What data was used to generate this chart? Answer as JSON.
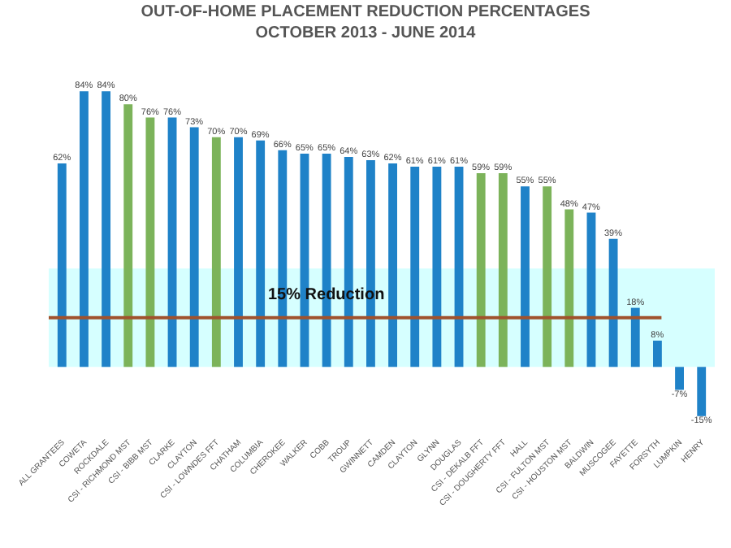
{
  "chart_data": {
    "type": "bar",
    "title": "OUT-OF-HOME PLACEMENT REDUCTION PERCENTAGES",
    "subtitle": "OCTOBER 2013 - JUNE 2014",
    "categories": [
      "ALL GRANTEES",
      "COWETA",
      "ROCKDALE",
      "CSI - RICHMOND MST",
      "CSI - BIBB MST",
      "CLARKE",
      "CLAYTON",
      "CSI - LOWNDES FFT",
      "CHATHAM",
      "COLUMBIA",
      "CHEROKEE",
      "WALKER",
      "COBB",
      "TROUP",
      "GWINNETT",
      "CAMDEN",
      "CLAYTON",
      "GLYNN",
      "DOUGLAS",
      "CSI - DEKALB FFT",
      "CSI - DOUGHERTY FFT",
      "HALL",
      "CSI - FULTON MST",
      "CSI - HOUSTON MST",
      "BALDWIN",
      "MUSCOGEE",
      "FAYETTE",
      "FORSYTH",
      "LUMPKIN",
      "HENRY"
    ],
    "values": [
      62,
      84,
      84,
      80,
      76,
      76,
      73,
      70,
      70,
      69,
      66,
      65,
      65,
      64,
      63,
      62,
      61,
      61,
      61,
      59,
      59,
      55,
      55,
      48,
      47,
      39,
      18,
      8,
      -7,
      -15
    ],
    "colors": [
      "#1f82c8",
      "#1f82c8",
      "#1f82c8",
      "#7cb35a",
      "#7cb35a",
      "#1f82c8",
      "#1f82c8",
      "#7cb35a",
      "#1f82c8",
      "#1f82c8",
      "#1f82c8",
      "#1f82c8",
      "#1f82c8",
      "#1f82c8",
      "#1f82c8",
      "#1f82c8",
      "#1f82c8",
      "#1f82c8",
      "#1f82c8",
      "#7cb35a",
      "#7cb35a",
      "#1f82c8",
      "#7cb35a",
      "#7cb35a",
      "#1f82c8",
      "#1f82c8",
      "#1f82c8",
      "#1f82c8",
      "#1f82c8",
      "#1f82c8"
    ],
    "value_labels": [
      "62%",
      "84%",
      "84%",
      "80%",
      "76%",
      "76%",
      "73%",
      "70%",
      "70%",
      "69%",
      "66%",
      "65%",
      "65%",
      "64%",
      "63%",
      "62%",
      "61%",
      "61%",
      "61%",
      "59%",
      "59%",
      "55%",
      "55%",
      "48%",
      "47%",
      "39%",
      "18%",
      "8%",
      "-7%",
      "-15%"
    ],
    "ref_lines": [
      {
        "axis": "y",
        "value": 15,
        "label": "15% Reduction",
        "color": "#a0522d"
      }
    ],
    "bands": [
      {
        "axis": "y",
        "from": 0,
        "to": 30,
        "color": "#ccffff"
      }
    ],
    "grid": false
  }
}
